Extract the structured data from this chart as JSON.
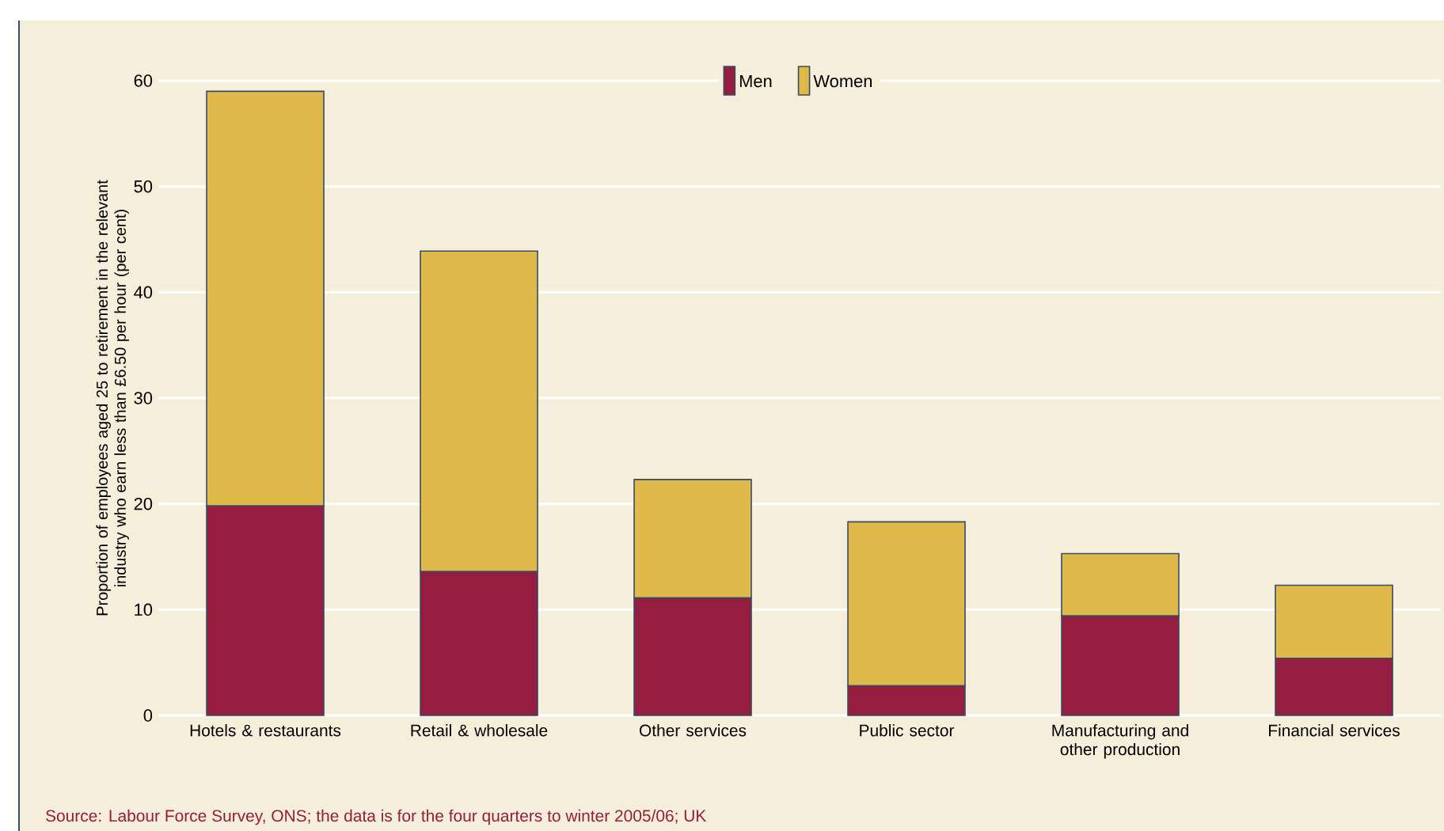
{
  "chart_data": {
    "type": "bar",
    "stacked": true,
    "ylabel": "Proportion of employees aged 25 to retirement in the relevant industry who earn less than £6.50 per hour (per cent)",
    "categories": [
      "Hotels & restaurants",
      "Retail & wholesale",
      "Other services",
      "Public sector",
      "Manufacturing and other production",
      "Financial services"
    ],
    "series": [
      {
        "name": "Men",
        "color": "#951d3f",
        "values": [
          19.8,
          13.6,
          11.1,
          2.8,
          9.4,
          5.4
        ]
      },
      {
        "name": "Women",
        "color": "#dfba4a",
        "values": [
          39.2,
          30.3,
          11.2,
          15.5,
          5.9,
          6.9
        ]
      }
    ],
    "ylim": [
      0,
      60
    ],
    "yticks": [
      0,
      10,
      20,
      30,
      40,
      50,
      60
    ],
    "grid": "y",
    "legend": "top",
    "annotations": [
      "Source: Labour Force Survey, ONS; the data is for the four quarters to winter 2005/06; UK"
    ]
  }
}
